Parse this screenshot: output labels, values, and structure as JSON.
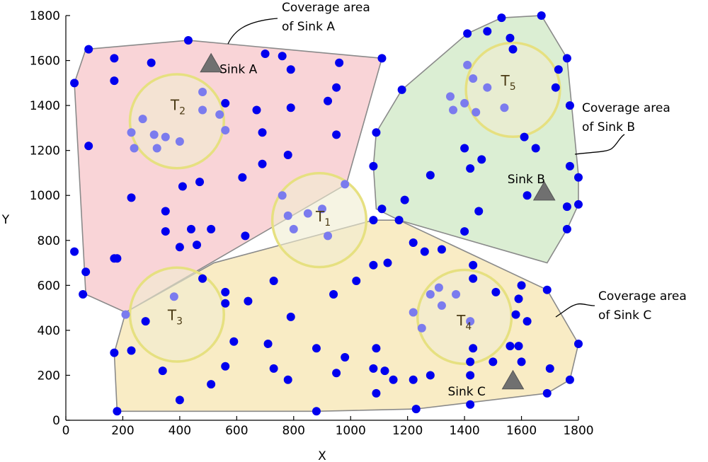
{
  "chart_data": {
    "type": "scatter",
    "title": "",
    "xlabel": "X",
    "ylabel": "Y",
    "xlim": [
      0,
      1800
    ],
    "ylim": [
      0,
      1800
    ],
    "xticks": [
      0,
      200,
      400,
      600,
      800,
      1000,
      1200,
      1400,
      1600,
      1800
    ],
    "yticks": [
      0,
      200,
      400,
      600,
      800,
      1000,
      1200,
      1400,
      1600,
      1800
    ],
    "grid": false,
    "colors": {
      "sensor": "#0000ee",
      "sensor_in_target": "#7b7bee",
      "region_a": "#f7c6c9",
      "region_b": "#cfe8c4",
      "region_c": "#f7e6b2",
      "target_fill": "#f0ecd0",
      "target_edge": "#e6e080",
      "sink": "#707070"
    },
    "regions": [
      {
        "id": "A",
        "polygon": [
          [
            30,
            1500
          ],
          [
            70,
            1650
          ],
          [
            430,
            1690
          ],
          [
            1110,
            1610
          ],
          [
            985,
            1050
          ],
          [
            210,
            480
          ],
          [
            70,
            560
          ]
        ]
      },
      {
        "id": "B",
        "polygon": [
          [
            1090,
            1280
          ],
          [
            1180,
            1470
          ],
          [
            1410,
            1720
          ],
          [
            1530,
            1790
          ],
          [
            1670,
            1800
          ],
          [
            1760,
            1610
          ],
          [
            1800,
            1090
          ],
          [
            1800,
            960
          ],
          [
            1760,
            850
          ],
          [
            1690,
            700
          ],
          [
            1170,
            890
          ],
          [
            1090,
            940
          ],
          [
            1080,
            1130
          ]
        ]
      },
      {
        "id": "C",
        "polygon": [
          [
            1080,
            890
          ],
          [
            1170,
            890
          ],
          [
            1690,
            580
          ],
          [
            1800,
            340
          ],
          [
            1770,
            180
          ],
          [
            1690,
            120
          ],
          [
            1230,
            50
          ],
          [
            880,
            40
          ],
          [
            180,
            40
          ],
          [
            170,
            300
          ],
          [
            210,
            480
          ],
          [
            520,
            700
          ]
        ]
      }
    ],
    "targets": [
      {
        "label": "T",
        "index": "1",
        "x": 890,
        "y": 890,
        "radius": 165
      },
      {
        "label": "T",
        "index": "2",
        "x": 390,
        "y": 1330,
        "radius": 165
      },
      {
        "label": "T",
        "index": "3",
        "x": 390,
        "y": 470,
        "radius": 165
      },
      {
        "label": "T",
        "index": "4",
        "x": 1400,
        "y": 460,
        "radius": 165
      },
      {
        "label": "T",
        "index": "5",
        "x": 1570,
        "y": 1470,
        "radius": 165
      }
    ],
    "sinks": [
      {
        "name": "Sink A",
        "x": 510,
        "y": 1590
      },
      {
        "name": "Sink B",
        "x": 1680,
        "y": 1020
      },
      {
        "name": "Sink C",
        "x": 1570,
        "y": 180
      }
    ],
    "annotations": [
      {
        "line1": "Coverage area",
        "line2": "of Sink A"
      },
      {
        "line1": "Coverage area",
        "line2": "of Sink B"
      },
      {
        "line1": "Coverage area",
        "line2": "of Sink C"
      }
    ],
    "sensors": [
      [
        80,
        1650
      ],
      [
        430,
        1690
      ],
      [
        170,
        1610
      ],
      [
        300,
        1590
      ],
      [
        170,
        1510
      ],
      [
        30,
        1500
      ],
      [
        700,
        1630
      ],
      [
        760,
        1620
      ],
      [
        790,
        1560
      ],
      [
        1110,
        1610
      ],
      [
        960,
        1590
      ],
      [
        950,
        1480
      ],
      [
        560,
        1410
      ],
      [
        670,
        1380
      ],
      [
        790,
        1390
      ],
      [
        950,
        1270
      ],
      [
        920,
        1420
      ],
      [
        690,
        1280
      ],
      [
        780,
        1180
      ],
      [
        690,
        1140
      ],
      [
        80,
        1220
      ],
      [
        410,
        1040
      ],
      [
        470,
        1060
      ],
      [
        230,
        990
      ],
      [
        620,
        1080
      ],
      [
        350,
        930
      ],
      [
        350,
        840
      ],
      [
        440,
        850
      ],
      [
        510,
        850
      ],
      [
        630,
        820
      ],
      [
        460,
        780
      ],
      [
        400,
        770
      ],
      [
        30,
        750
      ],
      [
        180,
        720
      ],
      [
        170,
        720
      ],
      [
        70,
        660
      ],
      [
        60,
        560
      ],
      [
        1090,
        1280
      ],
      [
        1180,
        1470
      ],
      [
        1410,
        1720
      ],
      [
        1480,
        1730
      ],
      [
        1530,
        1790
      ],
      [
        1670,
        1800
      ],
      [
        1560,
        1700
      ],
      [
        1570,
        1650
      ],
      [
        1760,
        1610
      ],
      [
        1730,
        1560
      ],
      [
        1720,
        1480
      ],
      [
        1770,
        1400
      ],
      [
        1610,
        1260
      ],
      [
        1650,
        1210
      ],
      [
        1400,
        1210
      ],
      [
        1420,
        1120
      ],
      [
        1460,
        1160
      ],
      [
        1280,
        1090
      ],
      [
        1080,
        1130
      ],
      [
        1770,
        1130
      ],
      [
        1800,
        1080
      ],
      [
        1620,
        1000
      ],
      [
        1800,
        960
      ],
      [
        1760,
        950
      ],
      [
        1190,
        980
      ],
      [
        1450,
        930
      ],
      [
        1110,
        940
      ],
      [
        1080,
        890
      ],
      [
        1400,
        840
      ],
      [
        1170,
        890
      ],
      [
        1760,
        850
      ],
      [
        1220,
        790
      ],
      [
        1260,
        750
      ],
      [
        1320,
        760
      ],
      [
        1080,
        690
      ],
      [
        1130,
        700
      ],
      [
        1430,
        690
      ],
      [
        1430,
        630
      ],
      [
        1510,
        570
      ],
      [
        1600,
        600
      ],
      [
        1690,
        580
      ],
      [
        1590,
        540
      ],
      [
        1580,
        470
      ],
      [
        1620,
        440
      ],
      [
        1020,
        620
      ],
      [
        940,
        560
      ],
      [
        560,
        570
      ],
      [
        560,
        520
      ],
      [
        640,
        530
      ],
      [
        730,
        620
      ],
      [
        790,
        460
      ],
      [
        480,
        630
      ],
      [
        280,
        440
      ],
      [
        590,
        350
      ],
      [
        710,
        340
      ],
      [
        880,
        320
      ],
      [
        980,
        280
      ],
      [
        1090,
        320
      ],
      [
        1430,
        320
      ],
      [
        1420,
        260
      ],
      [
        1560,
        330
      ],
      [
        1590,
        330
      ],
      [
        1500,
        260
      ],
      [
        1600,
        260
      ],
      [
        1700,
        230
      ],
      [
        1800,
        340
      ],
      [
        1080,
        230
      ],
      [
        1120,
        220
      ],
      [
        1150,
        180
      ],
      [
        1220,
        180
      ],
      [
        1280,
        200
      ],
      [
        1420,
        200
      ],
      [
        950,
        210
      ],
      [
        730,
        230
      ],
      [
        780,
        180
      ],
      [
        560,
        240
      ],
      [
        510,
        160
      ],
      [
        340,
        220
      ],
      [
        230,
        310
      ],
      [
        170,
        300
      ],
      [
        1770,
        180
      ],
      [
        1690,
        120
      ],
      [
        1090,
        120
      ],
      [
        1230,
        50
      ],
      [
        1420,
        70
      ],
      [
        880,
        40
      ],
      [
        400,
        90
      ],
      [
        180,
        40
      ]
    ],
    "sensors_in_targets": [
      [
        980,
        1050
      ],
      [
        760,
        1000
      ],
      [
        780,
        910
      ],
      [
        850,
        920
      ],
      [
        900,
        940
      ],
      [
        800,
        850
      ],
      [
        920,
        820
      ],
      [
        270,
        1340
      ],
      [
        230,
        1280
      ],
      [
        310,
        1270
      ],
      [
        350,
        1260
      ],
      [
        400,
        1240
      ],
      [
        240,
        1210
      ],
      [
        320,
        1210
      ],
      [
        480,
        1460
      ],
      [
        480,
        1380
      ],
      [
        540,
        1360
      ],
      [
        560,
        1290
      ],
      [
        380,
        550
      ],
      [
        210,
        470
      ],
      [
        1280,
        560
      ],
      [
        1310,
        590
      ],
      [
        1370,
        560
      ],
      [
        1320,
        510
      ],
      [
        1220,
        480
      ],
      [
        1250,
        410
      ],
      [
        1420,
        440
      ],
      [
        1410,
        1580
      ],
      [
        1430,
        1520
      ],
      [
        1480,
        1480
      ],
      [
        1350,
        1440
      ],
      [
        1400,
        1410
      ],
      [
        1440,
        1370
      ],
      [
        1540,
        1390
      ],
      [
        1360,
        1380
      ]
    ]
  }
}
